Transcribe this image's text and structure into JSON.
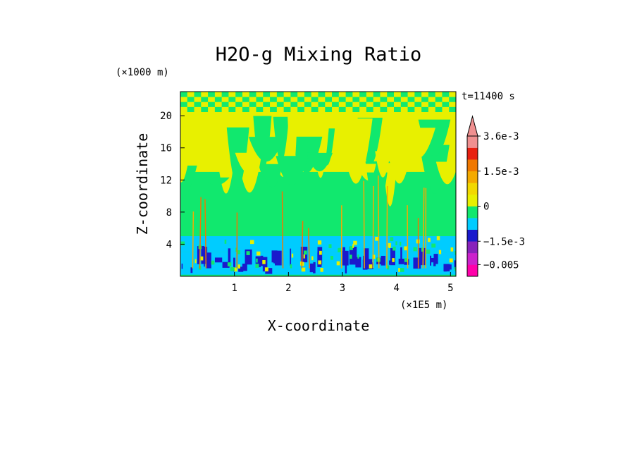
{
  "chart_data": {
    "type": "heatmap",
    "title": "H2O-g Mixing Ratio",
    "xlabel": "X-coordinate",
    "ylabel": "Z-coordinate",
    "x_unit": "(×1E5 m)",
    "y_unit": "(×1000 m)",
    "time_label": "t=11400 s",
    "xlim": [
      0,
      5.1
    ],
    "ylim": [
      0,
      23
    ],
    "x_ticks": [
      1,
      2,
      3,
      4,
      5
    ],
    "y_ticks": [
      4,
      8,
      12,
      16,
      20
    ],
    "colorbar": {
      "levels": [
        -0.008,
        -0.005,
        -0.003,
        -0.0015,
        -0.001,
        -0.0005,
        0,
        0.0005,
        0.001,
        0.0015,
        0.002,
        0.003,
        0.0036
      ],
      "colors": [
        "#ff00aa",
        "#cc22cc",
        "#8822bb",
        "#1a1acc",
        "#00ccff",
        "#11e86e",
        "#e8f000",
        "#f2d800",
        "#f4aa00",
        "#f07800",
        "#e82010",
        "#f09090"
      ],
      "labels": [
        {
          "value": 0.0036,
          "text": "3.6e-3"
        },
        {
          "value": 0.0015,
          "text": "1.5e-3"
        },
        {
          "value": 0,
          "text": "0"
        },
        {
          "value": -0.0015,
          "text": "−1.5e-3"
        },
        {
          "value": -0.005,
          "text": "−0.005"
        }
      ]
    },
    "field_description": "Rows are layers from the top of the domain down to the surface, with a dominant colour index per layer",
    "layers": [
      {
        "z_top": 23,
        "z_bottom": 20.5,
        "color_index": 6,
        "pattern": "checker"
      },
      {
        "z_top": 20.5,
        "z_bottom": 13,
        "color_index": 6,
        "pattern": "mixed"
      },
      {
        "z_top": 13,
        "z_bottom": 5,
        "color_index": 5,
        "pattern": "mixed"
      },
      {
        "z_top": 5,
        "z_bottom": 3,
        "color_index": 4,
        "pattern": "mixed"
      },
      {
        "z_top": 3,
        "z_bottom": 0,
        "color_index": 3,
        "pattern": "mixed"
      }
    ]
  }
}
